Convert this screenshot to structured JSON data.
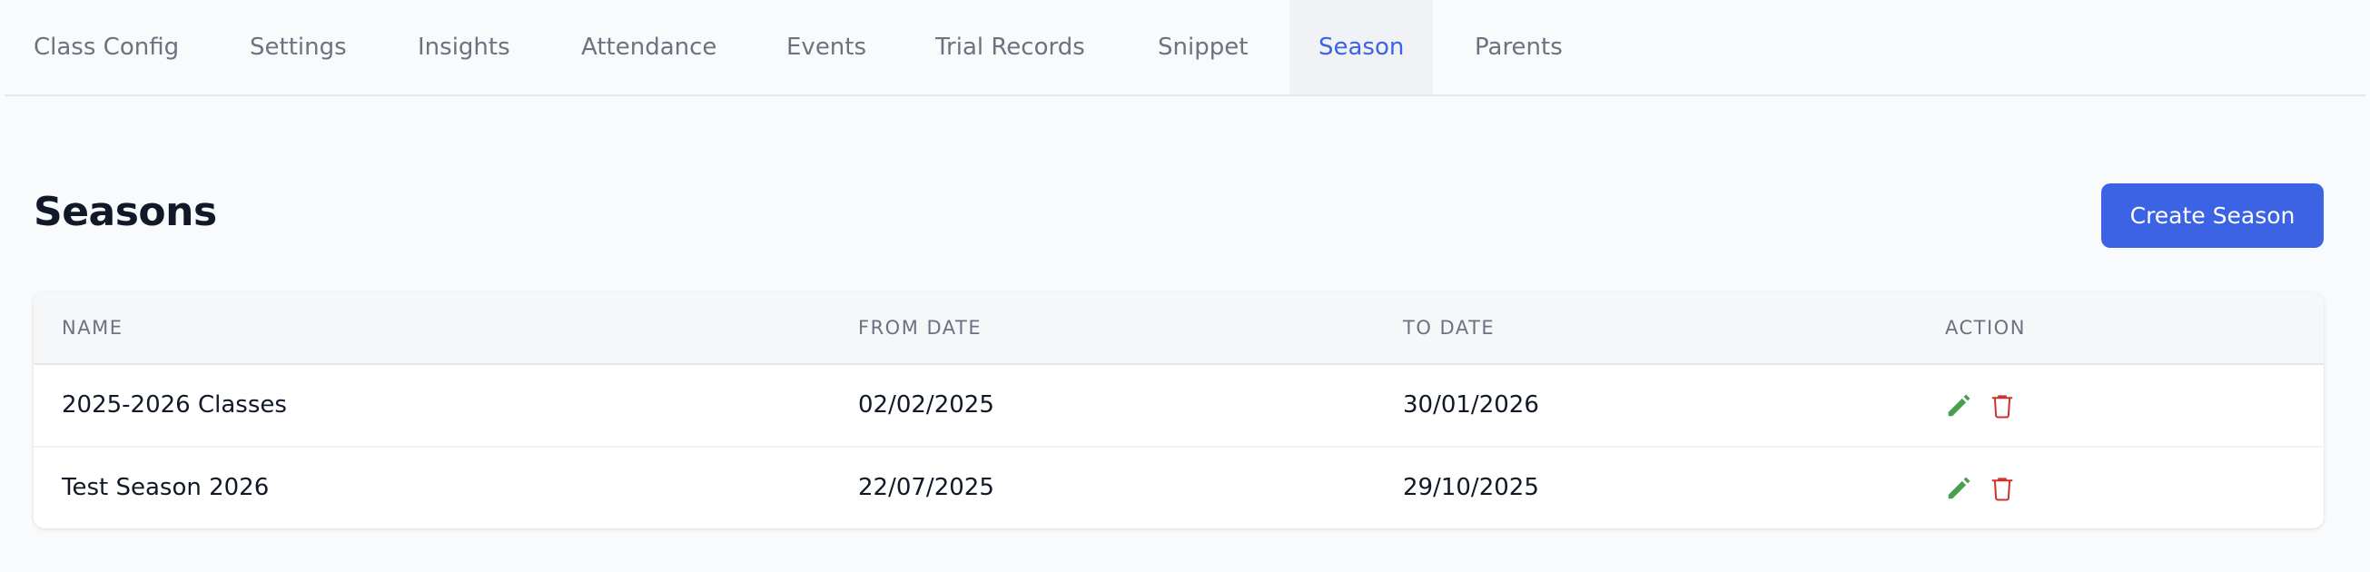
{
  "tabs": [
    {
      "label": "Class Config",
      "active": false
    },
    {
      "label": "Settings",
      "active": false
    },
    {
      "label": "Insights",
      "active": false
    },
    {
      "label": "Attendance",
      "active": false
    },
    {
      "label": "Events",
      "active": false
    },
    {
      "label": "Trial Records",
      "active": false
    },
    {
      "label": "Snippet",
      "active": false
    },
    {
      "label": "Season",
      "active": true
    },
    {
      "label": "Parents",
      "active": false
    }
  ],
  "page": {
    "title": "Seasons",
    "create_label": "Create Season"
  },
  "table": {
    "columns": [
      "NAME",
      "FROM DATE",
      "TO DATE",
      "ACTION"
    ],
    "rows": [
      {
        "name": "2025-2026 Classes",
        "from": "02/02/2025",
        "to": "30/01/2026",
        "actions": [
          "edit-icon",
          "delete-icon"
        ]
      },
      {
        "name": "Test Season 2026",
        "from": "22/07/2025",
        "to": "29/10/2025",
        "actions": [
          "edit-icon",
          "delete-icon"
        ]
      }
    ]
  },
  "colors": {
    "accent": "#3b63e4",
    "edit": "#4a9e50",
    "delete": "#d0312d"
  }
}
